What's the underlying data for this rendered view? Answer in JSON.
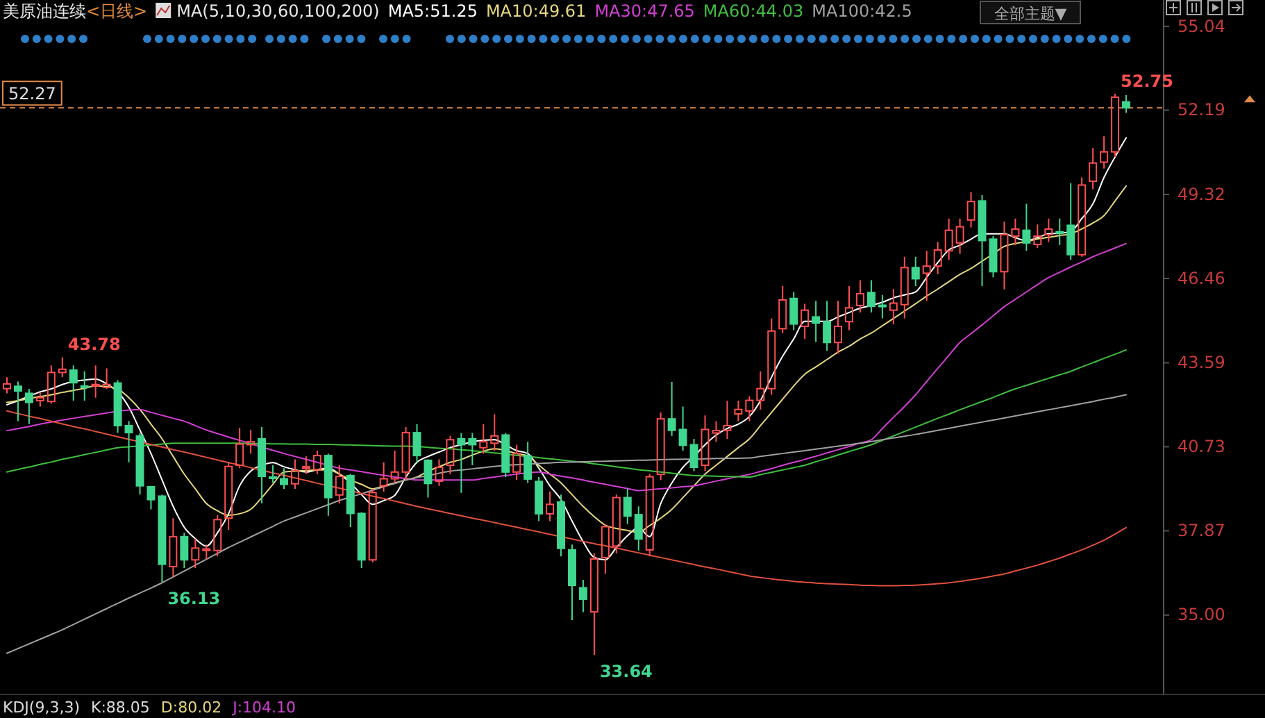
{
  "chart_data": {
    "type": "candlestick",
    "title": "美原油连续",
    "subtitle": "<日线>",
    "legend_title": "MA(5,10,30,60,100,200)",
    "legend": "top left",
    "tick_labels": "y",
    "categories": [
      null,
      null,
      null,
      null,
      null,
      null,
      null,
      null,
      null,
      null,
      null,
      null,
      null,
      null,
      null,
      null,
      null,
      null,
      null,
      null,
      null,
      null,
      null,
      null,
      null,
      null,
      null,
      null,
      null,
      null,
      null,
      null,
      null,
      null,
      null,
      null,
      null,
      null,
      null,
      null,
      null,
      null,
      null,
      null,
      null,
      null,
      null,
      null,
      null,
      null,
      null,
      null,
      null,
      null,
      null,
      null,
      null,
      null,
      null,
      null,
      null,
      null,
      null,
      null,
      null,
      null,
      null,
      null,
      null,
      null,
      null,
      null,
      null,
      null,
      null,
      null,
      null,
      null,
      null,
      null,
      null,
      null,
      null,
      null,
      null,
      null,
      null,
      null,
      null,
      null,
      null,
      null,
      null,
      null,
      null,
      null,
      null,
      null,
      null,
      null,
      null,
      null
    ],
    "ylim": [
      32.3,
      55.94
    ],
    "yticks": [
      {
        "value": 35,
        "label": "35.00"
      },
      37.87,
      40.73,
      43.59,
      46.46,
      49.32,
      52.19,
      55.04
    ],
    "ohlc": [
      [
        42.71,
        43.1,
        42.55,
        42.87
      ],
      [
        42.79,
        42.95,
        41.6,
        42.63
      ],
      [
        42.55,
        42.7,
        41.5,
        42.24
      ],
      [
        42.3,
        42.6,
        42.1,
        42.4
      ],
      [
        42.27,
        43.5,
        42.2,
        43.26
      ],
      [
        43.26,
        43.78,
        43.1,
        43.37
      ],
      [
        43.34,
        43.5,
        42.3,
        42.91
      ],
      [
        42.8,
        43.3,
        42.3,
        42.75
      ],
      [
        42.8,
        43.5,
        42.4,
        42.85
      ],
      [
        42.75,
        43.4,
        42.7,
        42.85
      ],
      [
        42.9,
        43.0,
        41.2,
        41.45
      ],
      [
        41.45,
        41.6,
        40.2,
        41.21
      ],
      [
        41.1,
        41.2,
        39.1,
        39.4
      ],
      [
        39.37,
        39.4,
        38.6,
        38.93
      ],
      [
        39.05,
        39.1,
        36.13,
        36.73
      ],
      [
        36.65,
        38.3,
        36.3,
        37.67
      ],
      [
        37.67,
        37.8,
        36.6,
        36.88
      ],
      [
        36.88,
        37.6,
        36.6,
        37.28
      ],
      [
        37.2,
        37.4,
        36.9,
        37.25
      ],
      [
        37.2,
        38.4,
        37.0,
        38.25
      ],
      [
        38.3,
        40.2,
        37.9,
        40.06
      ],
      [
        40.1,
        41.37,
        40.0,
        40.82
      ],
      [
        40.8,
        41.3,
        40.5,
        40.9
      ],
      [
        41.0,
        41.4,
        38.8,
        39.72
      ],
      [
        39.7,
        40.1,
        39.5,
        39.68
      ],
      [
        39.64,
        40.0,
        39.3,
        39.45
      ],
      [
        39.47,
        40.3,
        39.3,
        39.92
      ],
      [
        40.0,
        40.4,
        39.8,
        40.05
      ],
      [
        39.95,
        40.6,
        39.8,
        40.43
      ],
      [
        40.43,
        40.5,
        38.38,
        39.0
      ],
      [
        39.09,
        40.1,
        38.8,
        39.72
      ],
      [
        39.75,
        39.8,
        38.0,
        38.46
      ],
      [
        38.46,
        38.5,
        36.6,
        36.88
      ],
      [
        36.88,
        39.3,
        36.8,
        39.17
      ],
      [
        39.4,
        40.2,
        39.2,
        39.64
      ],
      [
        39.64,
        40.6,
        39.5,
        39.87
      ],
      [
        39.87,
        41.4,
        39.6,
        41.21
      ],
      [
        41.21,
        41.5,
        40.2,
        40.43
      ],
      [
        40.27,
        40.3,
        39.0,
        39.48
      ],
      [
        39.56,
        40.3,
        39.4,
        40.03
      ],
      [
        40.1,
        41.1,
        39.8,
        40.97
      ],
      [
        41.0,
        41.2,
        39.16,
        40.8
      ],
      [
        41.0,
        41.2,
        40.1,
        40.8
      ],
      [
        40.7,
        41.5,
        40.5,
        40.9
      ],
      [
        40.85,
        41.84,
        40.6,
        41.1
      ],
      [
        41.13,
        41.2,
        39.7,
        39.87
      ],
      [
        39.87,
        40.8,
        39.6,
        40.5
      ],
      [
        40.42,
        40.9,
        39.5,
        39.63
      ],
      [
        39.55,
        39.7,
        38.2,
        38.45
      ],
      [
        38.45,
        39.2,
        38.2,
        38.77
      ],
      [
        38.85,
        39.1,
        37.0,
        37.27
      ],
      [
        37.22,
        37.4,
        34.83,
        36.01
      ],
      [
        35.93,
        36.2,
        35.1,
        35.54
      ],
      [
        35.11,
        37.1,
        33.64,
        36.91
      ],
      [
        36.96,
        38.1,
        36.4,
        38.01
      ],
      [
        37.35,
        39.1,
        37.1,
        39.0
      ],
      [
        39.0,
        39.3,
        38.1,
        38.37
      ],
      [
        38.42,
        38.7,
        37.2,
        37.59
      ],
      [
        37.22,
        39.8,
        37.0,
        39.71
      ],
      [
        39.79,
        41.9,
        39.6,
        41.68
      ],
      [
        41.68,
        42.94,
        41.1,
        41.29
      ],
      [
        41.32,
        42.1,
        40.6,
        40.78
      ],
      [
        40.8,
        41.0,
        39.9,
        40.03
      ],
      [
        40.1,
        41.8,
        39.9,
        41.32
      ],
      [
        41.2,
        41.6,
        40.9,
        41.28
      ],
      [
        41.29,
        42.3,
        41.0,
        41.45
      ],
      [
        41.85,
        42.3,
        41.6,
        42.0
      ],
      [
        41.95,
        42.45,
        41.6,
        42.31
      ],
      [
        42.31,
        43.3,
        42.0,
        42.71
      ],
      [
        42.71,
        45.1,
        42.5,
        44.67
      ],
      [
        44.75,
        46.2,
        44.6,
        45.73
      ],
      [
        45.78,
        46.0,
        44.7,
        44.91
      ],
      [
        44.83,
        45.6,
        44.4,
        45.38
      ],
      [
        45.15,
        45.7,
        44.3,
        44.94
      ],
      [
        44.99,
        45.7,
        44.0,
        44.28
      ],
      [
        44.28,
        45.7,
        43.9,
        44.83
      ],
      [
        44.99,
        46.2,
        44.7,
        45.46
      ],
      [
        45.54,
        46.4,
        45.3,
        45.94
      ],
      [
        45.98,
        46.4,
        45.3,
        45.51
      ],
      [
        45.55,
        45.9,
        45.1,
        45.5
      ],
      [
        45.38,
        46.1,
        44.9,
        45.62
      ],
      [
        45.57,
        47.2,
        45.1,
        46.83
      ],
      [
        46.83,
        47.2,
        46.2,
        46.45
      ],
      [
        46.64,
        47.4,
        45.7,
        46.88
      ],
      [
        46.88,
        47.7,
        46.6,
        47.43
      ],
      [
        47.4,
        48.5,
        47.1,
        48.1
      ],
      [
        47.67,
        48.5,
        47.3,
        48.22
      ],
      [
        48.45,
        49.4,
        48.2,
        49.08
      ],
      [
        49.1,
        49.3,
        46.2,
        47.75
      ],
      [
        47.8,
        47.9,
        46.5,
        46.69
      ],
      [
        46.69,
        48.4,
        46.09,
        47.95
      ],
      [
        47.9,
        48.5,
        47.6,
        48.14
      ],
      [
        48.1,
        49.0,
        47.4,
        47.67
      ],
      [
        47.62,
        48.3,
        47.5,
        47.9
      ],
      [
        47.95,
        48.5,
        47.7,
        48.14
      ],
      [
        48.05,
        48.5,
        47.6,
        48.0
      ],
      [
        48.27,
        49.7,
        47.1,
        47.27
      ],
      [
        47.27,
        49.9,
        47.2,
        49.64
      ],
      [
        49.77,
        50.9,
        49.5,
        50.39
      ],
      [
        50.42,
        51.3,
        50.2,
        50.77
      ],
      [
        50.77,
        52.75,
        50.6,
        52.63
      ],
      [
        52.47,
        52.7,
        52.1,
        52.27
      ]
    ],
    "series": [
      {
        "type": "line",
        "name": "MA5:51.25",
        "color": "#ffffff",
        "values": [
          42.16,
          42.3,
          42.45,
          42.6,
          42.7,
          42.85,
          42.95,
          43.0,
          43.03,
          42.87,
          42.6,
          42.08,
          41.3,
          40.5,
          39.6,
          38.7,
          37.99,
          37.6,
          37.35,
          37.8,
          38.45,
          39.4,
          39.9,
          40.1,
          40.19,
          40.05,
          39.95,
          39.87,
          39.95,
          40.0,
          39.8,
          39.5,
          39.1,
          38.77,
          38.9,
          39.08,
          39.7,
          40.2,
          40.4,
          40.55,
          40.7,
          40.8,
          40.9,
          40.95,
          40.97,
          40.8,
          40.6,
          40.5,
          40.0,
          39.4,
          38.93,
          38.2,
          37.5,
          36.96,
          36.88,
          37.3,
          37.7,
          37.98,
          37.67,
          38.8,
          39.5,
          40.03,
          40.4,
          40.8,
          41.13,
          41.35,
          41.5,
          41.76,
          42.3,
          43.1,
          43.81,
          44.4,
          45.0,
          45.0,
          45.0,
          45.15,
          45.3,
          45.45,
          45.54,
          45.65,
          45.8,
          45.9,
          46.0,
          46.5,
          47.0,
          47.43,
          47.59,
          47.8,
          47.98,
          47.98,
          47.98,
          47.85,
          47.75,
          47.85,
          47.98,
          48.0,
          48.06,
          48.5,
          49.0,
          49.9,
          50.6,
          51.25
        ]
      },
      {
        "type": "line",
        "name": "MA10:49.61",
        "color": "#e6d77c",
        "values": [
          42.24,
          42.3,
          42.37,
          42.44,
          42.5,
          42.58,
          42.65,
          42.72,
          42.8,
          42.78,
          42.7,
          42.4,
          42.0,
          41.5,
          41.0,
          40.4,
          39.8,
          39.3,
          38.8,
          38.55,
          38.4,
          38.45,
          38.6,
          39.0,
          39.45,
          39.87,
          39.9,
          39.92,
          39.94,
          39.95,
          39.8,
          39.6,
          39.45,
          39.3,
          39.4,
          39.5,
          39.6,
          39.7,
          39.9,
          40.05,
          40.2,
          40.3,
          40.45,
          40.58,
          40.66,
          40.6,
          40.5,
          40.42,
          40.1,
          39.8,
          39.5,
          39.1,
          38.7,
          38.35,
          38.06,
          37.95,
          37.88,
          37.82,
          38.05,
          38.3,
          38.6,
          39.0,
          39.4,
          39.8,
          40.1,
          40.4,
          40.7,
          41.0,
          41.45,
          41.9,
          42.35,
          42.8,
          43.2,
          43.45,
          43.7,
          43.95,
          44.15,
          44.4,
          44.6,
          44.85,
          45.1,
          45.35,
          45.6,
          45.86,
          46.1,
          46.35,
          46.6,
          46.8,
          47.05,
          47.3,
          47.55,
          47.65,
          47.72,
          47.8,
          47.86,
          47.92,
          47.98,
          48.15,
          48.35,
          48.6,
          49.1,
          49.61
        ]
      },
      {
        "type": "line",
        "name": "MA30:47.65",
        "color": "#d23fd2",
        "values": [
          41.28,
          41.35,
          41.42,
          41.5,
          41.57,
          41.64,
          41.7,
          41.76,
          41.82,
          41.88,
          41.94,
          41.98,
          42.0,
          41.9,
          41.8,
          41.7,
          41.6,
          41.45,
          41.3,
          41.18,
          41.06,
          40.95,
          40.84,
          40.72,
          40.61,
          40.5,
          40.4,
          40.3,
          40.2,
          40.1,
          40.0,
          39.94,
          39.88,
          39.82,
          39.76,
          39.7,
          39.65,
          39.6,
          39.6,
          39.6,
          39.6,
          39.6,
          39.6,
          39.65,
          39.7,
          39.75,
          39.8,
          39.84,
          39.87,
          39.8,
          39.73,
          39.67,
          39.6,
          39.52,
          39.45,
          39.38,
          39.31,
          39.24,
          39.27,
          39.3,
          39.33,
          39.37,
          39.4,
          39.48,
          39.56,
          39.64,
          39.72,
          39.79,
          39.89,
          39.99,
          40.1,
          40.2,
          40.3,
          40.41,
          40.52,
          40.63,
          40.74,
          40.86,
          40.97,
          41.35,
          41.73,
          42.1,
          42.5,
          42.95,
          43.4,
          43.84,
          44.28,
          44.58,
          44.88,
          45.19,
          45.5,
          45.75,
          46.0,
          46.25,
          46.49,
          46.67,
          46.85,
          47.02,
          47.2,
          47.35,
          47.5,
          47.65
        ]
      },
      {
        "type": "line",
        "name": "MA60:44.03",
        "color": "#3fbf3f",
        "values": [
          39.87,
          39.96,
          40.04,
          40.13,
          40.21,
          40.3,
          40.38,
          40.46,
          40.54,
          40.62,
          40.7,
          40.73,
          40.76,
          40.79,
          40.82,
          40.85,
          40.85,
          40.85,
          40.85,
          40.85,
          40.85,
          40.85,
          40.84,
          40.84,
          40.83,
          40.83,
          40.82,
          40.82,
          40.81,
          40.81,
          40.8,
          40.79,
          40.78,
          40.77,
          40.76,
          40.75,
          40.75,
          40.74,
          40.71,
          40.68,
          40.66,
          40.63,
          40.6,
          40.56,
          40.52,
          40.48,
          40.44,
          40.4,
          40.36,
          40.32,
          40.28,
          40.24,
          40.2,
          40.15,
          40.1,
          40.05,
          40.0,
          39.95,
          39.91,
          39.87,
          39.83,
          39.79,
          39.75,
          39.74,
          39.73,
          39.72,
          39.71,
          39.7,
          39.78,
          39.86,
          39.94,
          40.02,
          40.1,
          40.22,
          40.33,
          40.45,
          40.57,
          40.68,
          40.8,
          40.95,
          41.1,
          41.25,
          41.4,
          41.55,
          41.7,
          41.84,
          41.99,
          42.13,
          42.27,
          42.41,
          42.56,
          42.7,
          42.82,
          42.94,
          43.06,
          43.18,
          43.3,
          43.45,
          43.59,
          43.74,
          43.88,
          44.03
        ]
      },
      {
        "type": "line",
        "name": "MA100:42.5",
        "color": "#a0a0a0",
        "values": [
          33.7,
          33.86,
          34.02,
          34.18,
          34.34,
          34.5,
          34.68,
          34.86,
          35.04,
          35.22,
          35.4,
          35.58,
          35.75,
          35.92,
          36.1,
          36.3,
          36.5,
          36.7,
          36.9,
          37.1,
          37.3,
          37.48,
          37.66,
          37.84,
          38.02,
          38.2,
          38.34,
          38.48,
          38.62,
          38.76,
          38.9,
          39.02,
          39.13,
          39.25,
          39.37,
          39.48,
          39.6,
          39.68,
          39.75,
          39.83,
          39.9,
          39.94,
          39.98,
          40.02,
          40.06,
          40.1,
          40.12,
          40.14,
          40.16,
          40.18,
          40.2,
          40.21,
          40.22,
          40.23,
          40.24,
          40.25,
          40.26,
          40.27,
          40.28,
          40.29,
          40.3,
          40.31,
          40.31,
          40.32,
          40.33,
          40.34,
          40.34,
          40.35,
          40.4,
          40.45,
          40.5,
          40.55,
          40.6,
          40.65,
          40.7,
          40.75,
          40.8,
          40.85,
          40.91,
          40.97,
          41.03,
          41.09,
          41.15,
          41.22,
          41.29,
          41.36,
          41.43,
          41.5,
          41.57,
          41.64,
          41.71,
          41.78,
          41.85,
          41.92,
          41.99,
          42.06,
          42.13,
          42.2,
          42.27,
          42.35,
          42.42,
          42.5
        ]
      },
      {
        "type": "line",
        "color": "#e0503c",
        "values": [
          41.95,
          41.86,
          41.77,
          41.69,
          41.6,
          41.51,
          41.42,
          41.34,
          41.25,
          41.16,
          41.07,
          40.98,
          40.9,
          40.81,
          40.72,
          40.63,
          40.55,
          40.46,
          40.37,
          40.28,
          40.19,
          40.11,
          40.02,
          39.93,
          39.84,
          39.76,
          39.67,
          39.58,
          39.49,
          39.4,
          39.32,
          39.23,
          39.14,
          39.05,
          38.97,
          38.88,
          38.79,
          38.7,
          38.62,
          38.54,
          38.46,
          38.38,
          38.3,
          38.23,
          38.15,
          38.07,
          37.99,
          37.91,
          37.83,
          37.75,
          37.67,
          37.59,
          37.51,
          37.43,
          37.36,
          37.28,
          37.2,
          37.12,
          37.04,
          36.96,
          36.88,
          36.8,
          36.72,
          36.64,
          36.57,
          36.49,
          36.41,
          36.33,
          36.28,
          36.23,
          36.19,
          36.15,
          36.12,
          36.09,
          36.07,
          36.05,
          36.04,
          36.02,
          36.01,
          36.0,
          36.0,
          36.01,
          36.02,
          36.04,
          36.07,
          36.1,
          36.15,
          36.2,
          36.26,
          36.33,
          36.4,
          36.5,
          36.6,
          36.7,
          36.82,
          36.94,
          37.08,
          37.22,
          37.38,
          37.55,
          37.76,
          37.98
        ]
      }
    ],
    "ref_lines": [
      {
        "axis": "y",
        "value": 52.27,
        "label": "52.27",
        "color": "#e08a4a",
        "line_style": "dashed"
      }
    ],
    "annotations": [
      "43.78",
      "36.13",
      "33.64",
      "52.75",
      "全部主题▼",
      "KDJ(9,3,3)",
      "K:88.05",
      "D:80.02",
      "J:104.10"
    ]
  }
}
